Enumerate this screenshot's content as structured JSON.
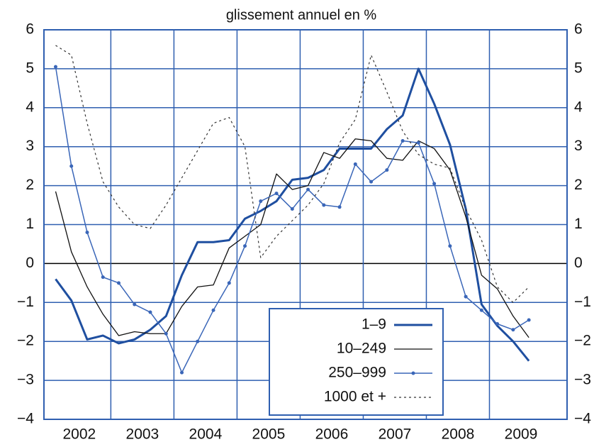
{
  "chart_data": {
    "type": "line",
    "title": "glissement annuel en %",
    "x": [
      2002.125,
      2002.375,
      2002.625,
      2002.875,
      2003.125,
      2003.375,
      2003.625,
      2003.875,
      2004.125,
      2004.375,
      2004.625,
      2004.875,
      2005.125,
      2005.375,
      2005.625,
      2005.875,
      2006.125,
      2006.375,
      2006.625,
      2006.875,
      2007.125,
      2007.375,
      2007.625,
      2007.875,
      2008.125,
      2008.375,
      2008.625,
      2008.875,
      2009.125,
      2009.375,
      2009.625
    ],
    "xlim": [
      2001.94,
      2010.23
    ],
    "xticks": [
      {
        "value": 2002.5,
        "label": "2002"
      },
      {
        "value": 2003.5,
        "label": "2003"
      },
      {
        "value": 2004.5,
        "label": "2004"
      },
      {
        "value": 2005.5,
        "label": "2005"
      },
      {
        "value": 2006.5,
        "label": "2006"
      },
      {
        "value": 2007.5,
        "label": "2007"
      },
      {
        "value": 2008.5,
        "label": "2008"
      },
      {
        "value": 2009.5,
        "label": "2009"
      }
    ],
    "ylim": [
      -4,
      6
    ],
    "yticks": [
      {
        "value": -4,
        "label": "−4"
      },
      {
        "value": -3,
        "label": "−3"
      },
      {
        "value": -2,
        "label": "−2"
      },
      {
        "value": -1,
        "label": "−1"
      },
      0,
      1,
      2,
      3,
      4,
      5,
      6
    ],
    "grid": true,
    "series": [
      {
        "name": "1–9",
        "color": "#1f4fa0",
        "line_width": 3,
        "dash": "none",
        "marker": false,
        "values": [
          -0.4,
          -0.95,
          -1.95,
          -1.85,
          -2.05,
          -1.95,
          -1.7,
          -1.35,
          -0.3,
          0.55,
          0.55,
          0.6,
          1.15,
          1.35,
          1.6,
          2.15,
          2.2,
          2.4,
          2.95,
          2.95,
          2.95,
          3.45,
          3.8,
          5.0,
          4.1,
          3.05,
          1.4,
          -1.05,
          -1.6,
          -2.0,
          -2.5
        ]
      },
      {
        "name": "10–249",
        "color": "#111111",
        "line_width": 1.3,
        "dash": "none",
        "marker": false,
        "values": [
          1.85,
          0.3,
          -0.6,
          -1.3,
          -1.85,
          -1.75,
          -1.8,
          -1.8,
          -1.1,
          -0.6,
          -0.55,
          0.4,
          0.7,
          1.0,
          2.3,
          1.9,
          2.0,
          2.85,
          2.7,
          3.2,
          3.15,
          2.7,
          2.65,
          3.15,
          2.95,
          2.4,
          1.2,
          -0.3,
          -0.65,
          -1.35,
          -1.9
        ]
      },
      {
        "name": "250–999",
        "color": "#3a66b8",
        "line_width": 1.5,
        "dash": "none",
        "marker": true,
        "values": [
          5.05,
          2.5,
          0.8,
          -0.35,
          -0.5,
          -1.05,
          -1.25,
          -1.8,
          -2.8,
          -2.0,
          -1.2,
          -0.5,
          0.45,
          1.6,
          1.8,
          1.4,
          1.9,
          1.5,
          1.45,
          2.55,
          2.1,
          2.4,
          3.15,
          3.1,
          2.05,
          0.45,
          -0.85,
          -1.2,
          -1.55,
          -1.7,
          -1.45
        ]
      },
      {
        "name": "1000 et +",
        "color": "#333333",
        "line_width": 1.2,
        "dash": "3 4",
        "marker": false,
        "values": [
          5.6,
          5.35,
          3.6,
          2.1,
          1.45,
          1.0,
          0.9,
          1.5,
          2.2,
          2.9,
          3.6,
          3.75,
          3.0,
          0.15,
          0.7,
          1.1,
          1.5,
          2.05,
          3.1,
          3.7,
          5.35,
          4.4,
          3.4,
          2.8,
          2.55,
          2.45,
          1.4,
          0.6,
          -0.6,
          -1.0,
          -0.6
        ]
      }
    ]
  }
}
